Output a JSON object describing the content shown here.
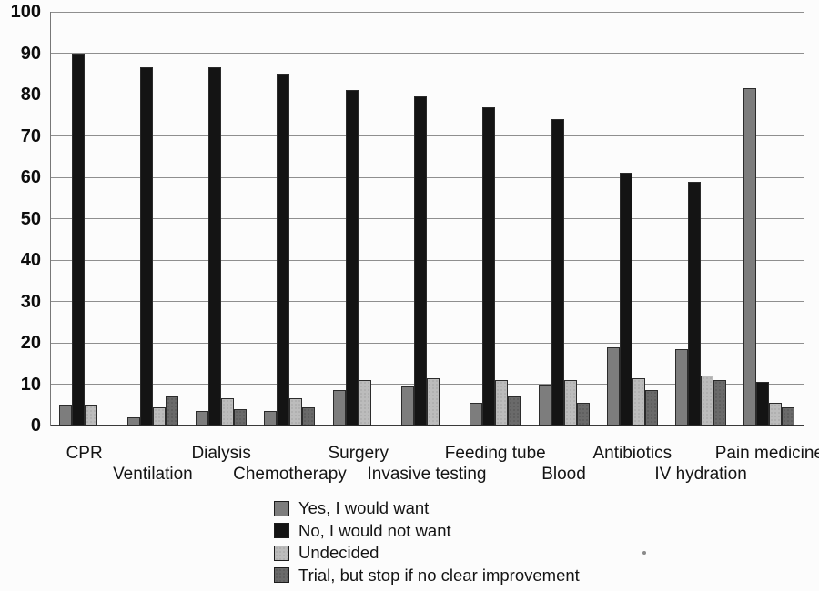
{
  "chart_data": {
    "type": "bar",
    "title": "",
    "xlabel": "",
    "ylabel": "",
    "categories": [
      "CPR",
      "Ventilation",
      "Dialysis",
      "Chemotherapy",
      "Surgery",
      "Invasive testing",
      "Feeding tube",
      "Blood",
      "Antibiotics",
      "IV hydration",
      "Pain medicine"
    ],
    "series": [
      {
        "name": "Yes, I would want",
        "color": "#7d7d7d",
        "pattern": "solid",
        "values": [
          5,
          2,
          3.5,
          3.5,
          8.5,
          9.5,
          5.5,
          10,
          19,
          18.5,
          81.5
        ]
      },
      {
        "name": "No, I would not want",
        "color": "#141414",
        "pattern": "solid",
        "values": [
          90,
          86.5,
          86.5,
          85,
          81,
          79.5,
          77,
          74,
          61,
          59,
          10.5
        ]
      },
      {
        "name": "Undecided",
        "color": "#bcbcbc",
        "pattern": "stipple",
        "values": [
          5,
          4.5,
          6.5,
          6.5,
          11,
          11.5,
          11,
          11,
          11.5,
          12,
          5.5
        ]
      },
      {
        "name": "Trial, but stop if no clear improvement",
        "color": "#6a6a6a",
        "pattern": "stipple-dark",
        "values": [
          0,
          7,
          4,
          4.5,
          0,
          0,
          7,
          5.5,
          8.5,
          11,
          4.5
        ]
      }
    ],
    "ylim": [
      0,
      100
    ],
    "yticks": [
      0,
      10,
      20,
      30,
      40,
      50,
      60,
      70,
      80,
      90,
      100
    ],
    "grid": "horizontal",
    "legend_position": "bottom-center",
    "xtick_layout": "staggered-two-rows"
  },
  "colors": {
    "background": "#fcfcfc",
    "gridline": "#8f8f8f",
    "axis": "#3a3a3a",
    "text": "#111111",
    "bar_border": "#2b2b2b"
  }
}
